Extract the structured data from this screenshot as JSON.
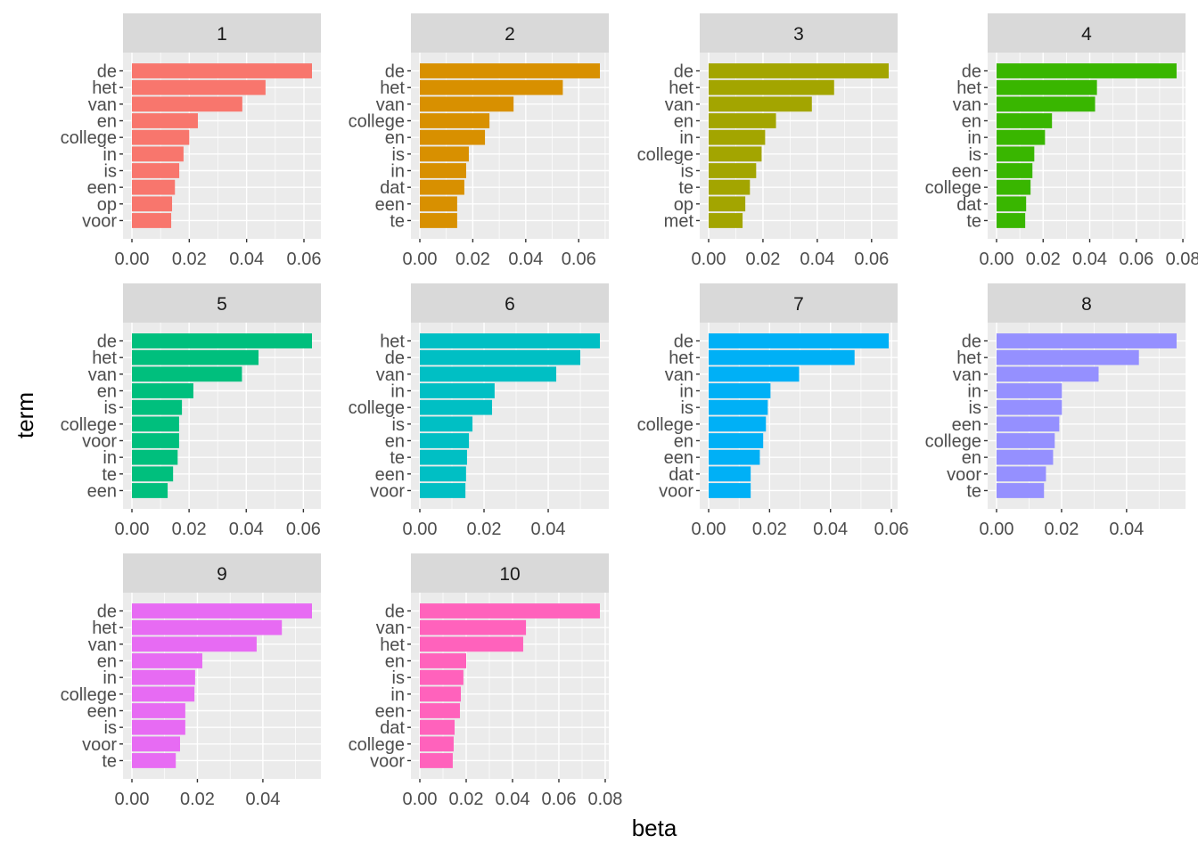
{
  "chart_data": {
    "type": "bar",
    "orientation": "horizontal",
    "xlabel": "beta",
    "ylabel": "term",
    "grid": true,
    "panels": [
      {
        "title": "1",
        "color": "#F8766D",
        "xlim": [
          0,
          0.0628
        ],
        "xticks": [
          "0.00",
          "0.02",
          "0.04",
          "0.06"
        ],
        "xtick_values": [
          0,
          0.02,
          0.04,
          0.06
        ],
        "terms": [
          "de",
          "het",
          "van",
          "en",
          "college",
          "in",
          "is",
          "een",
          "op",
          "voor"
        ],
        "values": [
          0.0628,
          0.0466,
          0.0385,
          0.023,
          0.02,
          0.018,
          0.0165,
          0.015,
          0.014,
          0.0137
        ]
      },
      {
        "title": "2",
        "color": "#D89000",
        "xlim": [
          0,
          0.068
        ],
        "xticks": [
          "0.00",
          "0.02",
          "0.04",
          "0.06"
        ],
        "xtick_values": [
          0,
          0.02,
          0.04,
          0.06
        ],
        "terms": [
          "de",
          "het",
          "van",
          "college",
          "en",
          "is",
          "in",
          "dat",
          "een",
          "te"
        ],
        "values": [
          0.068,
          0.054,
          0.0354,
          0.0263,
          0.0246,
          0.0185,
          0.0175,
          0.0168,
          0.0141,
          0.0141
        ]
      },
      {
        "title": "3",
        "color": "#A3A500",
        "xlim": [
          0,
          0.0663
        ],
        "xticks": [
          "0.00",
          "0.02",
          "0.04",
          "0.06"
        ],
        "xtick_values": [
          0,
          0.02,
          0.04,
          0.06
        ],
        "terms": [
          "de",
          "het",
          "van",
          "en",
          "in",
          "college",
          "is",
          "te",
          "op",
          "met"
        ],
        "values": [
          0.0663,
          0.0462,
          0.038,
          0.0248,
          0.0208,
          0.0195,
          0.0175,
          0.0152,
          0.0135,
          0.0125
        ]
      },
      {
        "title": "4",
        "color": "#39B600",
        "xlim": [
          0,
          0.0773
        ],
        "xticks": [
          "0.00",
          "0.02",
          "0.04",
          "0.06",
          "0.08"
        ],
        "xtick_values": [
          0,
          0.02,
          0.04,
          0.06,
          0.08
        ],
        "terms": [
          "de",
          "het",
          "van",
          "en",
          "in",
          "is",
          "een",
          "college",
          "dat",
          "te"
        ],
        "values": [
          0.0773,
          0.0431,
          0.0423,
          0.0238,
          0.0208,
          0.0162,
          0.0154,
          0.0146,
          0.0127,
          0.0123
        ]
      },
      {
        "title": "5",
        "color": "#00BF7D",
        "xlim": [
          0,
          0.063
        ],
        "xticks": [
          "0.00",
          "0.02",
          "0.04",
          "0.06"
        ],
        "xtick_values": [
          0,
          0.02,
          0.04,
          0.06
        ],
        "terms": [
          "de",
          "het",
          "van",
          "en",
          "is",
          "college",
          "voor",
          "in",
          "te",
          "een"
        ],
        "values": [
          0.063,
          0.0443,
          0.0385,
          0.0215,
          0.0175,
          0.0165,
          0.0165,
          0.016,
          0.0144,
          0.0125
        ]
      },
      {
        "title": "6",
        "color": "#00BFC4",
        "xlim": [
          0,
          0.0561
        ],
        "xticks": [
          "0.00",
          "0.02",
          "0.04"
        ],
        "xtick_values": [
          0,
          0.02,
          0.04
        ],
        "terms": [
          "het",
          "de",
          "van",
          "in",
          "college",
          "is",
          "en",
          "te",
          "een",
          "voor"
        ],
        "values": [
          0.0561,
          0.05,
          0.0425,
          0.0233,
          0.0225,
          0.0164,
          0.0153,
          0.0147,
          0.0144,
          0.0142
        ]
      },
      {
        "title": "7",
        "color": "#00B0F6",
        "xlim": [
          0,
          0.0591
        ],
        "xticks": [
          "0.00",
          "0.02",
          "0.04",
          "0.06"
        ],
        "xtick_values": [
          0,
          0.02,
          0.04,
          0.06
        ],
        "terms": [
          "de",
          "het",
          "van",
          "in",
          "is",
          "college",
          "en",
          "een",
          "dat",
          "voor"
        ],
        "values": [
          0.0591,
          0.0479,
          0.0297,
          0.0203,
          0.0194,
          0.0188,
          0.0179,
          0.0168,
          0.0138,
          0.0138
        ]
      },
      {
        "title": "8",
        "color": "#9590FF",
        "xlim": [
          0,
          0.0554
        ],
        "xticks": [
          "0.00",
          "0.02",
          "0.04"
        ],
        "xtick_values": [
          0,
          0.02,
          0.04
        ],
        "terms": [
          "de",
          "het",
          "van",
          "in",
          "is",
          "een",
          "college",
          "en",
          "voor",
          "te"
        ],
        "values": [
          0.0554,
          0.0438,
          0.0314,
          0.0201,
          0.0201,
          0.0193,
          0.0179,
          0.0174,
          0.0152,
          0.0146
        ]
      },
      {
        "title": "9",
        "color": "#E76BF3",
        "xlim": [
          0,
          0.055
        ],
        "xticks": [
          "0.00",
          "0.02",
          "0.04"
        ],
        "xtick_values": [
          0,
          0.02,
          0.04
        ],
        "terms": [
          "de",
          "het",
          "van",
          "en",
          "in",
          "college",
          "een",
          "is",
          "voor",
          "te"
        ],
        "values": [
          0.055,
          0.0458,
          0.0381,
          0.0215,
          0.0193,
          0.0191,
          0.0163,
          0.0163,
          0.0147,
          0.0134
        ]
      },
      {
        "title": "10",
        "color": "#FF62BC",
        "xlim": [
          0,
          0.0777
        ],
        "xticks": [
          "0.00",
          "0.02",
          "0.04",
          "0.06",
          "0.08"
        ],
        "xtick_values": [
          0,
          0.02,
          0.04,
          0.06,
          0.08
        ],
        "terms": [
          "de",
          "van",
          "het",
          "en",
          "is",
          "in",
          "een",
          "dat",
          "college",
          "voor"
        ],
        "values": [
          0.0777,
          0.0458,
          0.0446,
          0.02,
          0.0188,
          0.0177,
          0.0173,
          0.015,
          0.0146,
          0.0142
        ]
      }
    ]
  }
}
